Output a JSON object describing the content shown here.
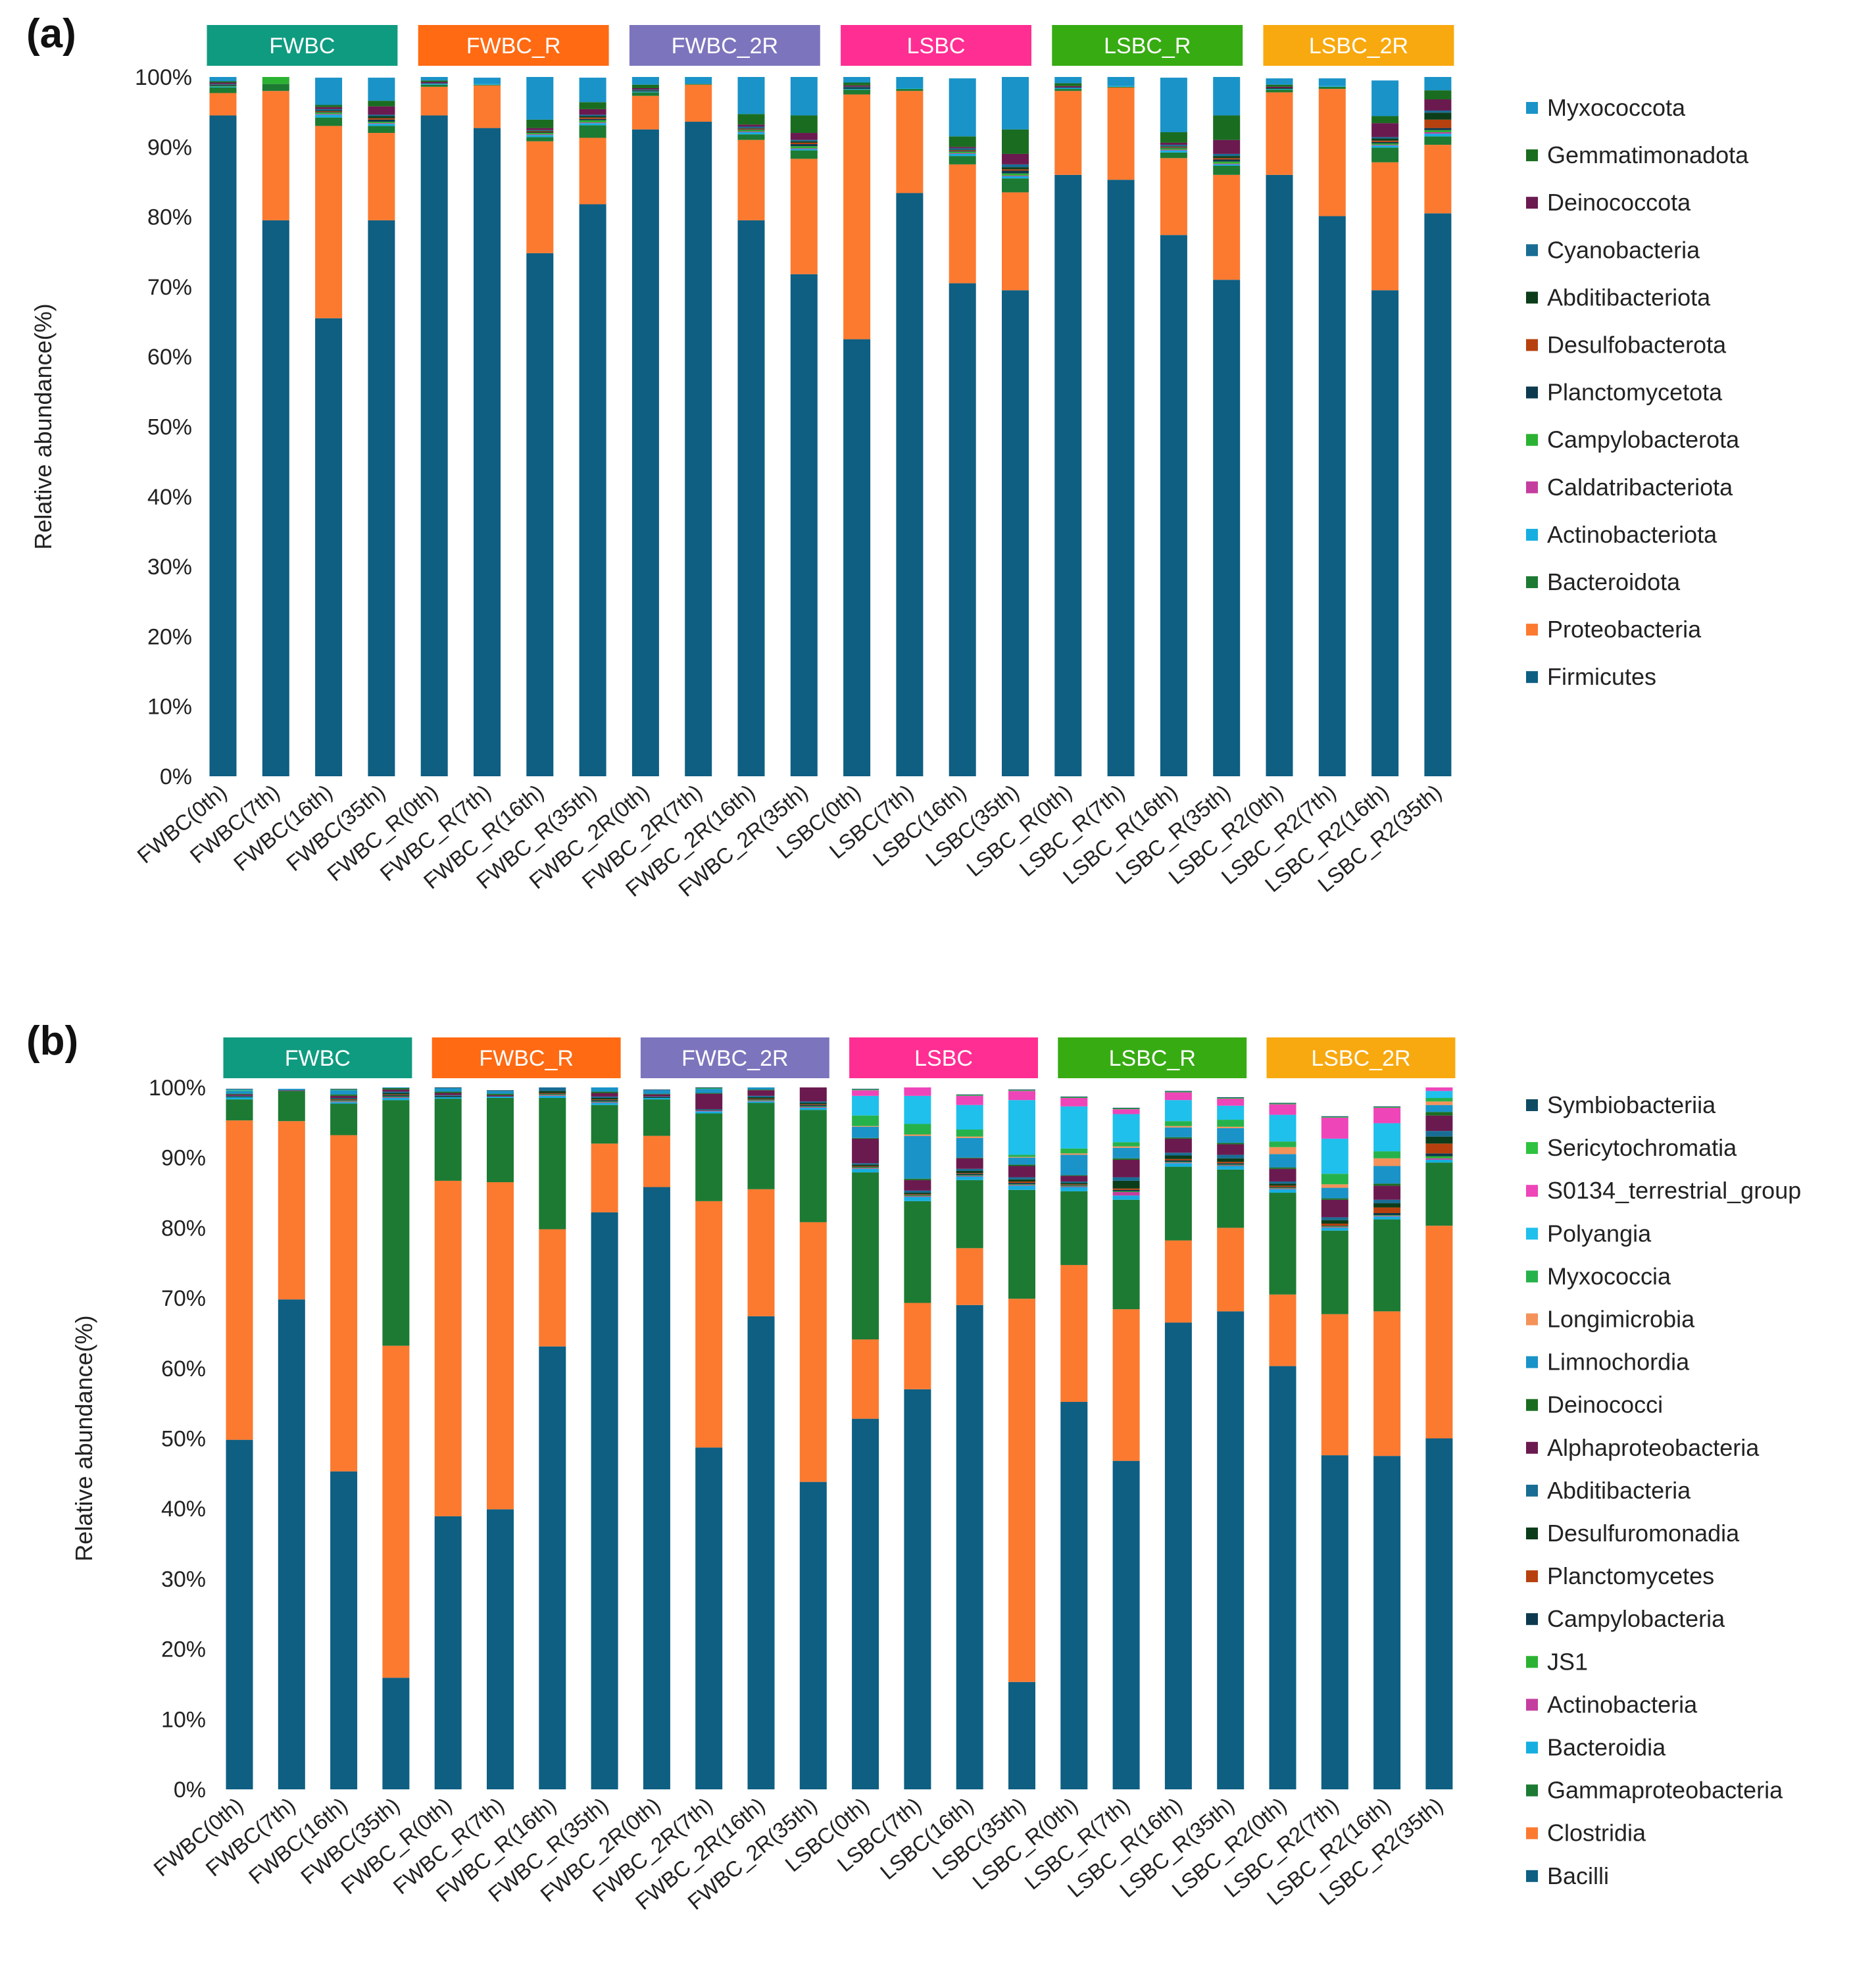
{
  "colors": {
    "group_FWBC": "#0f9b80",
    "group_FWBC_R": "#ff6a13",
    "group_FWBC_2R": "#7c75bd",
    "group_LSBC": "#ff2e93",
    "group_LSBC_R": "#37ab12",
    "group_LSBC_2R": "#f8a90f",
    "group_text": "#ffffff"
  },
  "chart_data": [
    {
      "panel_label": "(a)",
      "type": "bar",
      "stacked": true,
      "ylabel": "Relative abundance(%)",
      "yticks": [
        "0%",
        "10%",
        "20%",
        "30%",
        "40%",
        "50%",
        "60%",
        "70%",
        "80%",
        "90%",
        "100%"
      ],
      "ylim": [
        0,
        100
      ],
      "groups": [
        "FWBC",
        "FWBC_R",
        "FWBC_2R",
        "LSBC",
        "LSBC_R",
        "LSBC_2R"
      ],
      "categories": [
        "FWBC(0th)",
        "FWBC(7th)",
        "FWBC(16th)",
        "FWBC(35th)",
        "FWBC_R(0th)",
        "FWBC_R(7th)",
        "FWBC_R(16th)",
        "FWBC_R(35th)",
        "FWBC_2R(0th)",
        "FWBC_2R(7th)",
        "FWBC_2R(16th)",
        "FWBC_2R(35th)",
        "LSBC(0th)",
        "LSBC(7th)",
        "LSBC(16th)",
        "LSBC(35th)",
        "LSBC_R(0th)",
        "LSBC_R(7th)",
        "LSBC_R(16th)",
        "LSBC_R(35th)",
        "LSBC_R2(0th)",
        "LSBC_R2(7th)",
        "LSBC_R2(16th)",
        "LSBC_R2(35th)"
      ],
      "legend_position": "right",
      "series": [
        {
          "name": "Firmicutes",
          "color": "#0e5f82",
          "values": [
            94.5,
            79.5,
            65.5,
            79.5,
            94.5,
            92.7,
            74.8,
            81.8,
            92.5,
            93.6,
            79.5,
            71.8,
            62.5,
            83.4,
            70.5,
            69.5,
            86.0,
            85.3,
            77.4,
            71.0,
            86.0,
            80.1,
            69.5,
            80.5
          ]
        },
        {
          "name": "Proteobacteria",
          "color": "#fb7a30",
          "values": [
            3.2,
            18.5,
            27.5,
            12.5,
            4.1,
            6.1,
            16.0,
            9.5,
            4.8,
            5.3,
            11.5,
            16.5,
            35.0,
            14.6,
            17.0,
            14.0,
            12.0,
            13.2,
            11.0,
            15.0,
            11.8,
            18.2,
            18.3,
            9.8
          ]
        },
        {
          "name": "Bacteroidota",
          "color": "#1d7a33",
          "values": [
            0.8,
            1.0,
            1.2,
            1.0,
            0.3,
            0.1,
            0.6,
            1.8,
            0.5,
            0.1,
            0.8,
            1.2,
            0.7,
            0.3,
            1.2,
            2.0,
            0.3,
            0.1,
            0.8,
            1.3,
            0.4,
            0.3,
            2.1,
            1.2
          ]
        },
        {
          "name": "Actinobacteriota",
          "color": "#16aee0",
          "values": [
            0.1,
            0.0,
            0.4,
            0.3,
            0.1,
            0.1,
            0.3,
            0.3,
            0.1,
            0.0,
            0.3,
            0.2,
            0.1,
            0.1,
            0.3,
            0.3,
            0.1,
            0.1,
            0.3,
            0.2,
            0.1,
            0.1,
            0.3,
            0.4
          ]
        },
        {
          "name": "Caldatribacteriota",
          "color": "#c43e9f",
          "values": [
            0.0,
            0.0,
            0.1,
            0.1,
            0.0,
            0.0,
            0.1,
            0.1,
            0.0,
            0.0,
            0.1,
            0.1,
            0.0,
            0.0,
            0.1,
            0.1,
            0.0,
            0.0,
            0.1,
            0.1,
            0.0,
            0.0,
            0.1,
            0.2
          ]
        },
        {
          "name": "Campylobacterota",
          "color": "#2cb232",
          "values": [
            0.1,
            1.2,
            0.2,
            0.2,
            0.0,
            0.0,
            0.2,
            0.3,
            0.0,
            0.0,
            0.2,
            0.3,
            0.0,
            0.0,
            0.2,
            0.3,
            0.0,
            0.0,
            0.2,
            0.3,
            0.0,
            0.0,
            0.2,
            0.3
          ]
        },
        {
          "name": "Planctomycetota",
          "color": "#0d3a4f",
          "values": [
            0.1,
            0.0,
            0.1,
            0.3,
            0.0,
            0.0,
            0.1,
            0.2,
            0.1,
            0.0,
            0.1,
            0.3,
            0.1,
            0.0,
            0.1,
            0.4,
            0.0,
            0.0,
            0.1,
            0.3,
            0.0,
            0.0,
            0.2,
            0.3
          ]
        },
        {
          "name": "Desulfobacterota",
          "color": "#b7410e",
          "values": [
            0.0,
            0.0,
            0.1,
            0.2,
            0.0,
            0.0,
            0.1,
            0.2,
            0.0,
            0.0,
            0.1,
            0.2,
            0.0,
            0.0,
            0.1,
            0.2,
            0.0,
            0.0,
            0.1,
            0.2,
            0.0,
            0.0,
            0.2,
            1.2
          ]
        },
        {
          "name": "Abditibacteriota",
          "color": "#0c3d1a",
          "values": [
            0.1,
            0.0,
            0.1,
            0.3,
            0.0,
            0.0,
            0.1,
            0.2,
            0.1,
            0.0,
            0.1,
            0.2,
            0.1,
            0.0,
            0.1,
            0.3,
            0.0,
            0.0,
            0.1,
            0.3,
            0.1,
            0.0,
            0.3,
            1.0
          ]
        },
        {
          "name": "Cyanobacteria",
          "color": "#196d94",
          "values": [
            0.1,
            0.0,
            0.2,
            0.2,
            0.1,
            0.0,
            0.1,
            0.2,
            0.1,
            0.0,
            0.2,
            0.2,
            0.1,
            0.0,
            0.2,
            0.4,
            0.1,
            0.0,
            0.2,
            0.3,
            0.0,
            0.0,
            0.2,
            0.3
          ]
        },
        {
          "name": "Deinococcota",
          "color": "#6b1a50",
          "values": [
            0.2,
            0.0,
            0.3,
            1.2,
            0.2,
            0.0,
            0.3,
            0.8,
            0.2,
            0.0,
            0.3,
            1.0,
            0.2,
            0.0,
            0.2,
            1.5,
            0.2,
            0.0,
            0.3,
            2.0,
            0.2,
            0.0,
            2.0,
            1.6
          ]
        },
        {
          "name": "Gemmatimonadota",
          "color": "#1a6d20",
          "values": [
            0.2,
            0.0,
            0.3,
            0.8,
            0.2,
            0.0,
            1.2,
            1.0,
            0.5,
            0.0,
            1.5,
            2.5,
            0.4,
            0.0,
            1.5,
            3.5,
            0.4,
            0.0,
            1.5,
            3.5,
            0.3,
            0.0,
            1.0,
            1.3
          ]
        },
        {
          "name": "Myxococcota",
          "color": "#1a93c8",
          "values": [
            0.6,
            0.0,
            3.9,
            3.3,
            0.5,
            0.9,
            6.1,
            3.5,
            1.1,
            1.0,
            5.3,
            5.5,
            0.8,
            1.6,
            8.3,
            7.5,
            0.9,
            1.3,
            7.8,
            5.9,
            0.9,
            1.1,
            5.1,
            2.5
          ]
        }
      ]
    },
    {
      "panel_label": "(b)",
      "type": "bar",
      "stacked": true,
      "ylabel": "Relative abundance(%)",
      "yticks": [
        "0%",
        "10%",
        "20%",
        "30%",
        "40%",
        "50%",
        "60%",
        "70%",
        "80%",
        "90%",
        "100%"
      ],
      "ylim": [
        0,
        100
      ],
      "groups": [
        "FWBC",
        "FWBC_R",
        "FWBC_2R",
        "LSBC",
        "LSBC_R",
        "LSBC_2R"
      ],
      "categories": [
        "FWBC(0th)",
        "FWBC(7th)",
        "FWBC(16th)",
        "FWBC(35th)",
        "FWBC_R(0th)",
        "FWBC_R(7th)",
        "FWBC_R(16th)",
        "FWBC_R(35th)",
        "FWBC_2R(0th)",
        "FWBC_2R(7th)",
        "FWBC_2R(16th)",
        "FWBC_2R(35th)",
        "LSBC(0th)",
        "LSBC(7th)",
        "LSBC(16th)",
        "LSBC(35th)",
        "LSBC_R(0th)",
        "LSBC_R(7th)",
        "LSBC_R(16th)",
        "LSBC_R(35th)",
        "LSBC_R2(0th)",
        "LSBC_R2(7th)",
        "LSBC_R2(16th)",
        "LSBC_R2(35th)"
      ],
      "legend_position": "right",
      "series": [
        {
          "name": "Bacilli",
          "color": "#0e5f82",
          "values": [
            49.8,
            69.8,
            45.3,
            15.9,
            38.9,
            39.9,
            63.1,
            82.2,
            85.8,
            48.7,
            67.4,
            43.8,
            52.8,
            57.0,
            69.0,
            15.3,
            55.2,
            46.8,
            66.5,
            68.1,
            60.3,
            47.6,
            47.5,
            50.0
          ]
        },
        {
          "name": "Clostridia",
          "color": "#fb7a30",
          "values": [
            45.5,
            25.4,
            47.9,
            47.3,
            47.8,
            46.6,
            16.7,
            9.8,
            7.3,
            35.1,
            18.1,
            37.0,
            11.3,
            12.3,
            8.1,
            54.6,
            19.5,
            21.6,
            11.7,
            11.9,
            10.2,
            20.1,
            20.6,
            30.3
          ]
        },
        {
          "name": "Gammaproteobacteria",
          "color": "#1d7a33",
          "values": [
            3.0,
            4.3,
            4.5,
            35.0,
            11.7,
            12.0,
            18.7,
            5.5,
            5.2,
            12.5,
            12.3,
            16.0,
            23.8,
            14.5,
            9.7,
            15.5,
            10.5,
            15.6,
            10.5,
            8.3,
            14.5,
            11.9,
            13.1,
            9.0
          ]
        },
        {
          "name": "Bacteroidia",
          "color": "#16aee0",
          "values": [
            0.3,
            0.0,
            0.2,
            0.3,
            0.2,
            0.2,
            0.3,
            0.3,
            0.2,
            0.3,
            0.2,
            0.3,
            0.5,
            0.6,
            0.5,
            0.6,
            0.6,
            0.6,
            0.5,
            0.5,
            0.5,
            0.4,
            0.4,
            0.4
          ]
        },
        {
          "name": "Actinobacteria",
          "color": "#c43e9f",
          "values": [
            0.0,
            0.0,
            0.1,
            0.1,
            0.0,
            0.0,
            0.1,
            0.1,
            0.0,
            0.1,
            0.1,
            0.1,
            0.1,
            0.1,
            0.1,
            0.1,
            0.1,
            0.5,
            0.1,
            0.1,
            0.1,
            0.1,
            0.1,
            0.2
          ]
        },
        {
          "name": "JS1",
          "color": "#2cb232",
          "values": [
            0.0,
            0.0,
            0.1,
            0.1,
            0.0,
            0.0,
            0.1,
            0.1,
            0.0,
            0.0,
            0.1,
            0.1,
            0.1,
            0.1,
            0.1,
            0.1,
            0.1,
            0.1,
            0.1,
            0.1,
            0.1,
            0.1,
            0.1,
            0.3
          ]
        },
        {
          "name": "Campylobacteria",
          "color": "#0d3a4f",
          "values": [
            0.0,
            0.0,
            0.1,
            0.2,
            0.1,
            0.0,
            0.1,
            0.2,
            0.0,
            0.0,
            0.1,
            0.2,
            0.1,
            0.1,
            0.2,
            0.2,
            0.1,
            0.2,
            0.2,
            0.2,
            0.1,
            0.1,
            0.3,
            0.4
          ]
        },
        {
          "name": "Planctomycetes",
          "color": "#b7410e",
          "values": [
            0.0,
            0.0,
            0.1,
            0.1,
            0.0,
            0.0,
            0.1,
            0.1,
            0.0,
            0.0,
            0.1,
            0.1,
            0.1,
            0.1,
            0.1,
            0.2,
            0.1,
            0.2,
            0.2,
            0.2,
            0.2,
            0.3,
            0.8,
            1.4
          ]
        },
        {
          "name": "Desulfuromonadia",
          "color": "#0c3d1a",
          "values": [
            0.1,
            0.0,
            0.1,
            0.2,
            0.1,
            0.0,
            0.3,
            0.2,
            0.1,
            0.1,
            0.2,
            0.2,
            0.2,
            0.2,
            0.3,
            0.3,
            0.2,
            1.1,
            0.5,
            0.5,
            0.3,
            0.5,
            0.6,
            1.0
          ]
        },
        {
          "name": "Abditibacteria",
          "color": "#196d94",
          "values": [
            0.1,
            0.0,
            0.1,
            0.2,
            0.1,
            0.0,
            0.8,
            0.2,
            0.1,
            0.1,
            0.2,
            0.2,
            0.2,
            0.3,
            0.3,
            0.3,
            0.2,
            0.5,
            0.4,
            0.5,
            0.3,
            0.4,
            0.5,
            0.8
          ]
        },
        {
          "name": "Alphaproteobacteria",
          "color": "#6b1a50",
          "values": [
            0.2,
            0.1,
            0.3,
            0.3,
            0.3,
            0.2,
            0.3,
            0.5,
            0.3,
            2.2,
            0.8,
            2.0,
            3.5,
            1.5,
            1.5,
            1.6,
            0.8,
            2.5,
            2.0,
            1.5,
            1.8,
            2.5,
            2.0,
            2.2
          ]
        },
        {
          "name": "Deinococci",
          "color": "#1a6d20",
          "values": [
            0.1,
            0.0,
            0.2,
            0.2,
            0.2,
            0.2,
            0.2,
            0.2,
            0.1,
            0.1,
            0.1,
            0.1,
            0.1,
            0.2,
            0.1,
            0.2,
            0.1,
            0.2,
            0.2,
            0.2,
            0.2,
            0.2,
            0.3,
            0.5
          ]
        },
        {
          "name": "Limnochordia",
          "color": "#1a93c8",
          "values": [
            0.4,
            0.2,
            0.6,
            0.5,
            0.5,
            0.4,
            0.5,
            0.6,
            0.5,
            0.6,
            0.3,
            0.4,
            1.6,
            6.1,
            2.8,
            1.0,
            2.9,
            1.5,
            1.4,
            2.1,
            1.9,
            1.5,
            2.5,
            1.0
          ]
        },
        {
          "name": "Longimicrobia",
          "color": "#f4925a",
          "values": [
            0.0,
            0.0,
            0.0,
            0.0,
            0.0,
            0.0,
            0.0,
            0.1,
            0.0,
            0.0,
            0.0,
            0.0,
            0.1,
            0.2,
            0.2,
            0.1,
            0.2,
            0.2,
            0.2,
            0.2,
            1.0,
            0.5,
            1.1,
            0.5
          ]
        },
        {
          "name": "Myxococcia",
          "color": "#26b24b",
          "values": [
            0.1,
            0.0,
            0.1,
            0.0,
            0.0,
            0.0,
            0.1,
            0.1,
            0.0,
            0.1,
            0.0,
            0.1,
            1.5,
            1.5,
            1.0,
            0.3,
            0.7,
            0.6,
            0.7,
            1.0,
            0.8,
            1.5,
            1.0,
            0.5
          ]
        },
        {
          "name": "Polyangia",
          "color": "#1fc0ec",
          "values": [
            0.1,
            0.0,
            0.0,
            0.0,
            0.0,
            0.0,
            0.0,
            0.0,
            0.0,
            0.0,
            0.0,
            0.0,
            2.8,
            4.0,
            3.5,
            7.8,
            6.0,
            4.0,
            3.0,
            2.0,
            3.8,
            5.0,
            4.0,
            1.0
          ]
        },
        {
          "name": "S0134_terrestrial_group",
          "color": "#ee45b8",
          "values": [
            0.0,
            0.0,
            0.0,
            0.0,
            0.0,
            0.0,
            0.0,
            0.0,
            0.0,
            0.0,
            0.0,
            0.0,
            0.8,
            1.2,
            1.3,
            1.3,
            1.2,
            0.7,
            1.1,
            1.0,
            1.5,
            3.0,
            2.2,
            0.8
          ]
        },
        {
          "name": "Sericytochromatia",
          "color": "#2ec23e",
          "values": [
            0.0,
            0.0,
            0.0,
            0.0,
            0.0,
            0.0,
            0.0,
            0.0,
            0.0,
            0.0,
            0.0,
            0.0,
            0.1,
            0.1,
            0.1,
            0.1,
            0.1,
            0.1,
            0.1,
            0.1,
            0.1,
            0.1,
            0.1,
            0.1
          ]
        },
        {
          "name": "Symbiobacteriia",
          "color": "#0f4a63",
          "values": [
            0.1,
            0.0,
            0.1,
            0.1,
            0.1,
            0.1,
            0.1,
            0.1,
            0.1,
            0.1,
            0.1,
            0.1,
            0.1,
            0.1,
            0.1,
            0.1,
            0.1,
            0.1,
            0.1,
            0.1,
            0.1,
            0.1,
            0.1,
            0.1
          ]
        }
      ]
    }
  ]
}
